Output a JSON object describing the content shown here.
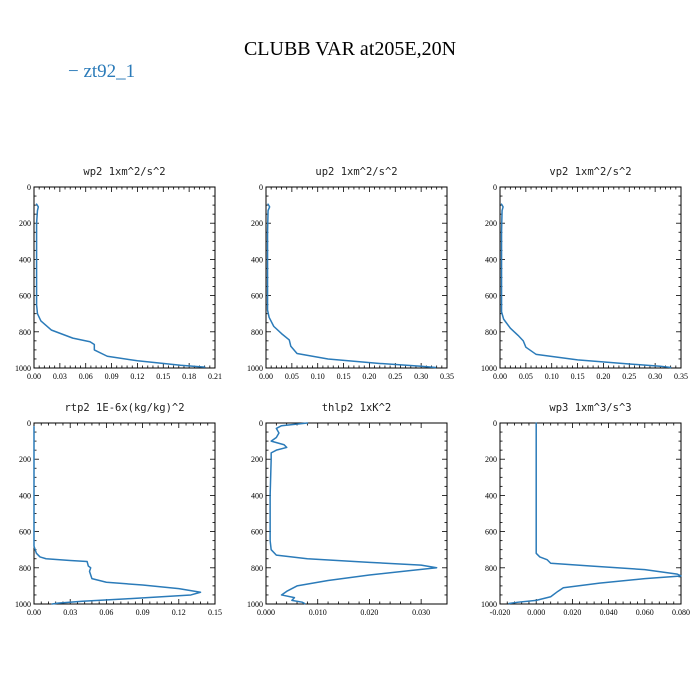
{
  "figure": {
    "title": "CLUBB VAR at205E,20N",
    "legend": {
      "label": "− zt92_1",
      "color": "#2b7bb9"
    },
    "line_color": "#2b7bb9"
  },
  "chart_data": [
    {
      "type": "line",
      "title": "wp2  1xm^2/s^2",
      "xlim": [
        0,
        0.21
      ],
      "ylim": [
        1000,
        0
      ],
      "xticks": [
        "0.00",
        "0.03",
        "0.06",
        "0.09",
        "0.12",
        "0.15",
        "0.18",
        "0.21"
      ],
      "xtick_values": [
        0,
        0.03,
        0.06,
        0.09,
        0.12,
        0.15,
        0.18,
        0.21
      ],
      "yticks": [
        "0",
        "200",
        "400",
        "600",
        "800",
        "1000"
      ],
      "ytick_values": [
        0,
        200,
        400,
        600,
        800,
        1000
      ],
      "series": [
        {
          "name": "zt92_1",
          "points": [
            [
              0.003,
              95
            ],
            [
              0.005,
              110
            ],
            [
              0.004,
              130
            ],
            [
              0.003,
              200
            ],
            [
              0.003,
              400
            ],
            [
              0.003,
              650
            ],
            [
              0.004,
              700
            ],
            [
              0.008,
              740
            ],
            [
              0.02,
              790
            ],
            [
              0.045,
              835
            ],
            [
              0.065,
              855
            ],
            [
              0.07,
              870
            ],
            [
              0.07,
              900
            ],
            [
              0.085,
              935
            ],
            [
              0.12,
              960
            ],
            [
              0.17,
              985
            ],
            [
              0.198,
              995
            ]
          ]
        }
      ]
    },
    {
      "type": "line",
      "title": "up2  1xm^2/s^2",
      "xlim": [
        0,
        0.35
      ],
      "ylim": [
        1000,
        0
      ],
      "xticks": [
        "0.00",
        "0.05",
        "0.10",
        "0.15",
        "0.20",
        "0.25",
        "0.30",
        "0.35"
      ],
      "xtick_values": [
        0,
        0.05,
        0.1,
        0.15,
        0.2,
        0.25,
        0.3,
        0.35
      ],
      "yticks": [
        "0",
        "200",
        "400",
        "600",
        "800",
        "1000"
      ],
      "ytick_values": [
        0,
        200,
        400,
        600,
        800,
        1000
      ],
      "series": [
        {
          "name": "zt92_1",
          "points": [
            [
              0.004,
              95
            ],
            [
              0.007,
              110
            ],
            [
              0.004,
              130
            ],
            [
              0.003,
              250
            ],
            [
              0.003,
              500
            ],
            [
              0.003,
              680
            ],
            [
              0.006,
              720
            ],
            [
              0.015,
              770
            ],
            [
              0.03,
              810
            ],
            [
              0.045,
              845
            ],
            [
              0.048,
              880
            ],
            [
              0.06,
              920
            ],
            [
              0.12,
              950
            ],
            [
              0.22,
              975
            ],
            [
              0.3,
              990
            ],
            [
              0.328,
              997
            ]
          ]
        }
      ]
    },
    {
      "type": "line",
      "title": "vp2  1xm^2/s^2",
      "xlim": [
        0,
        0.35
      ],
      "ylim": [
        1000,
        0
      ],
      "xticks": [
        "0.00",
        "0.05",
        "0.10",
        "0.15",
        "0.20",
        "0.25",
        "0.30",
        "0.35"
      ],
      "xtick_values": [
        0,
        0.05,
        0.1,
        0.15,
        0.2,
        0.25,
        0.3,
        0.35
      ],
      "yticks": [
        "0",
        "200",
        "400",
        "600",
        "800",
        "1000"
      ],
      "ytick_values": [
        0,
        200,
        400,
        600,
        800,
        1000
      ],
      "series": [
        {
          "name": "zt92_1",
          "points": [
            [
              0.003,
              95
            ],
            [
              0.006,
              110
            ],
            [
              0.004,
              130
            ],
            [
              0.003,
              250
            ],
            [
              0.003,
              500
            ],
            [
              0.003,
              690
            ],
            [
              0.007,
              730
            ],
            [
              0.02,
              780
            ],
            [
              0.035,
              820
            ],
            [
              0.045,
              850
            ],
            [
              0.05,
              885
            ],
            [
              0.07,
              925
            ],
            [
              0.15,
              955
            ],
            [
              0.25,
              978
            ],
            [
              0.31,
              990
            ],
            [
              0.33,
              997
            ]
          ]
        }
      ]
    },
    {
      "type": "line",
      "title": "rtp2  1E-6x(kg/kg)^2",
      "xlim": [
        0,
        0.15
      ],
      "ylim": [
        1000,
        0
      ],
      "xticks": [
        "0.00",
        "0.03",
        "0.06",
        "0.09",
        "0.12",
        "0.15"
      ],
      "xtick_values": [
        0,
        0.03,
        0.06,
        0.09,
        0.12,
        0.15
      ],
      "yticks": [
        "0",
        "200",
        "400",
        "600",
        "800",
        "1000"
      ],
      "ytick_values": [
        0,
        200,
        400,
        600,
        800,
        1000
      ],
      "series": [
        {
          "name": "zt92_1",
          "points": [
            [
              0.0,
              20
            ],
            [
              0.0,
              400
            ],
            [
              0.0,
              680
            ],
            [
              0.002,
              720
            ],
            [
              0.005,
              740
            ],
            [
              0.01,
              750
            ],
            [
              0.02,
              755
            ],
            [
              0.03,
              760
            ],
            [
              0.044,
              765
            ],
            [
              0.045,
              790
            ],
            [
              0.047,
              800
            ],
            [
              0.046,
              820
            ],
            [
              0.048,
              860
            ],
            [
              0.06,
              880
            ],
            [
              0.09,
              895
            ],
            [
              0.12,
              915
            ],
            [
              0.138,
              935
            ],
            [
              0.13,
              950
            ],
            [
              0.08,
              970
            ],
            [
              0.04,
              985
            ],
            [
              0.02,
              995
            ],
            [
              0.015,
              1000
            ]
          ]
        }
      ]
    },
    {
      "type": "line",
      "title": "thlp2  1xK^2",
      "xlim": [
        0,
        0.035
      ],
      "ylim": [
        1000,
        0
      ],
      "xticks": [
        "0.000",
        "0.010",
        "0.020",
        "0.030"
      ],
      "xtick_values": [
        0,
        0.01,
        0.02,
        0.03
      ],
      "yticks": [
        "0",
        "200",
        "400",
        "600",
        "800",
        "1000"
      ],
      "ytick_values": [
        0,
        200,
        400,
        600,
        800,
        1000
      ],
      "series": [
        {
          "name": "zt92_1",
          "points": [
            [
              0.008,
              0
            ],
            [
              0.003,
              15
            ],
            [
              0.002,
              30
            ],
            [
              0.0025,
              55
            ],
            [
              0.002,
              80
            ],
            [
              0.001,
              100
            ],
            [
              0.0035,
              120
            ],
            [
              0.004,
              135
            ],
            [
              0.002,
              150
            ],
            [
              0.001,
              165
            ],
            [
              0.001,
              200
            ],
            [
              0.0008,
              400
            ],
            [
              0.0008,
              650
            ],
            [
              0.001,
              700
            ],
            [
              0.002,
              730
            ],
            [
              0.008,
              750
            ],
            [
              0.02,
              770
            ],
            [
              0.03,
              785
            ],
            [
              0.033,
              800
            ],
            [
              0.028,
              815
            ],
            [
              0.02,
              840
            ],
            [
              0.012,
              870
            ],
            [
              0.006,
              900
            ],
            [
              0.004,
              930
            ],
            [
              0.003,
              950
            ],
            [
              0.0055,
              965
            ],
            [
              0.005,
              980
            ],
            [
              0.007,
              990
            ],
            [
              0.0075,
              998
            ]
          ]
        }
      ]
    },
    {
      "type": "line",
      "title": "wp3  1xm^3/s^3",
      "xlim": [
        -0.02,
        0.08
      ],
      "ylim": [
        1000,
        0
      ],
      "xticks": [
        "-0.020",
        "0.000",
        "0.020",
        "0.040",
        "0.060",
        "0.080"
      ],
      "xtick_values": [
        -0.02,
        0,
        0.02,
        0.04,
        0.06,
        0.08
      ],
      "yticks": [
        "0",
        "200",
        "400",
        "600",
        "800",
        "1000"
      ],
      "ytick_values": [
        0,
        200,
        400,
        600,
        800,
        1000
      ],
      "series": [
        {
          "name": "zt92_1",
          "points": [
            [
              0.0,
              0
            ],
            [
              0.0,
              200
            ],
            [
              0.0,
              500
            ],
            [
              0.0,
              720
            ],
            [
              0.002,
              740
            ],
            [
              0.006,
              755
            ],
            [
              0.008,
              775
            ],
            [
              0.03,
              790
            ],
            [
              0.06,
              810
            ],
            [
              0.078,
              835
            ],
            [
              0.08,
              845
            ],
            [
              0.06,
              860
            ],
            [
              0.035,
              885
            ],
            [
              0.015,
              910
            ],
            [
              0.012,
              930
            ],
            [
              0.008,
              960
            ],
            [
              0.0,
              980
            ],
            [
              -0.01,
              990
            ],
            [
              -0.015,
              997
            ]
          ]
        }
      ]
    }
  ]
}
